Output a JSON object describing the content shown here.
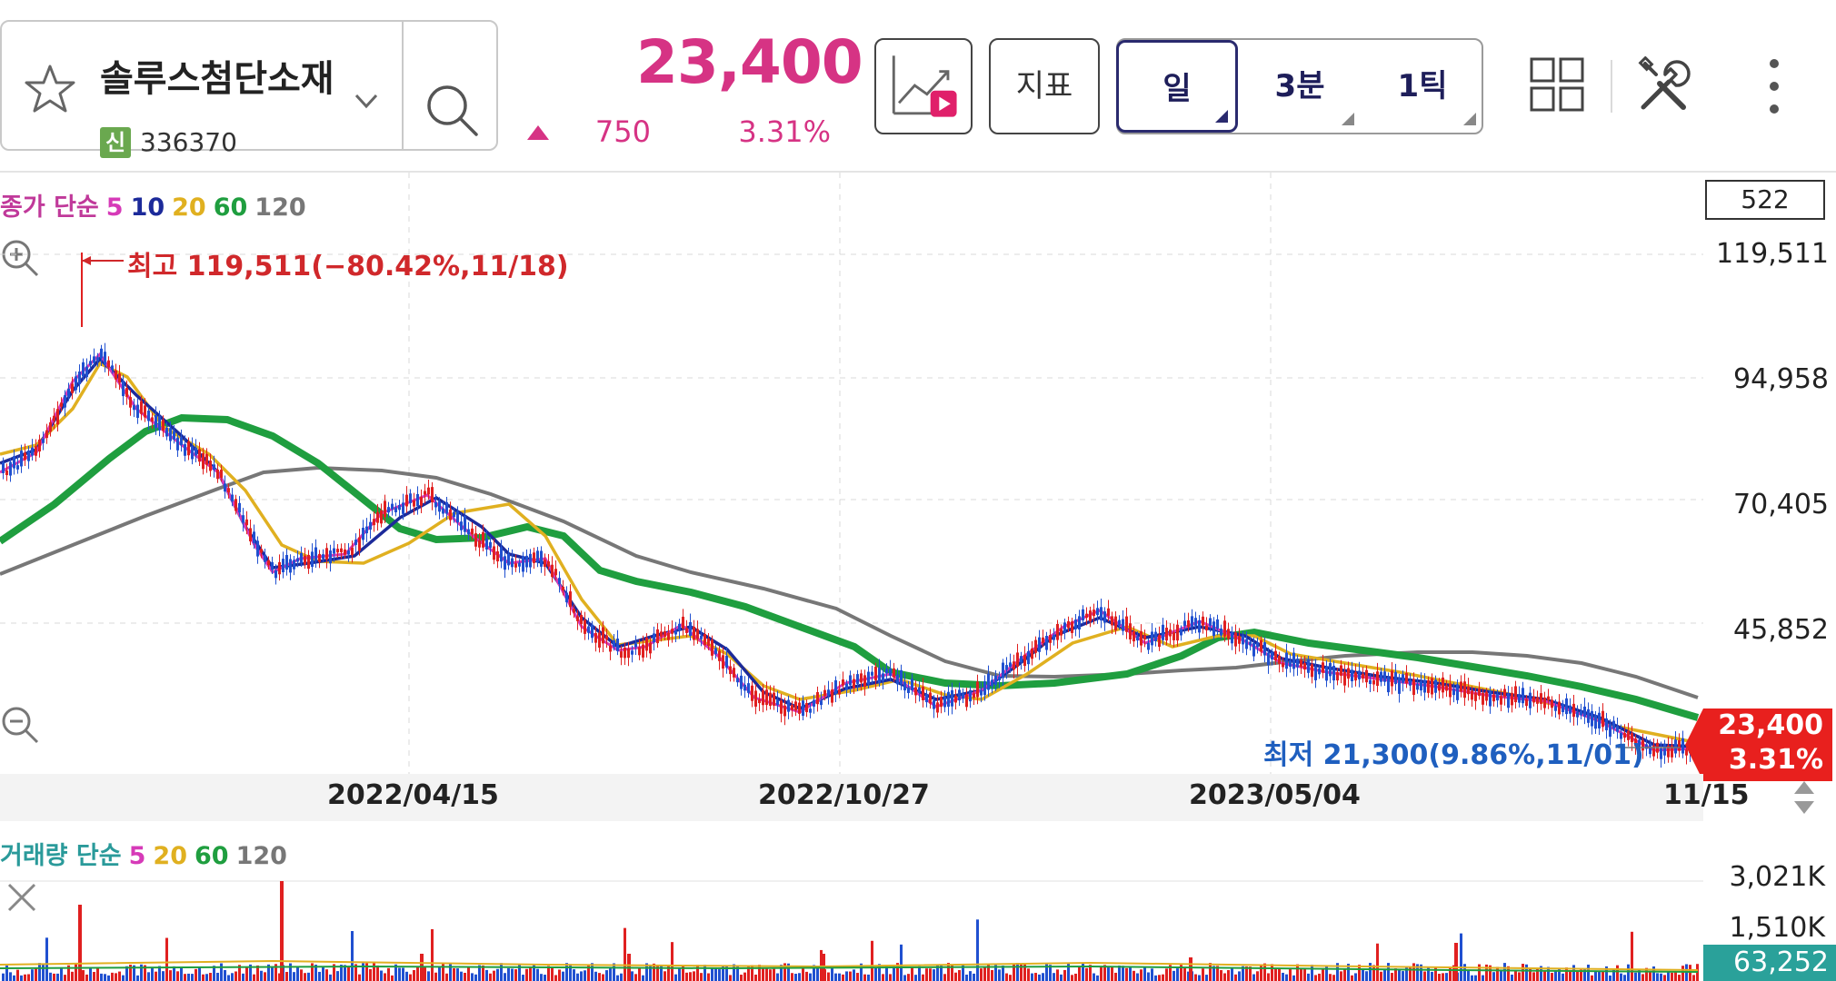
{
  "header": {
    "stock_name": "솔루스첨단소재",
    "stock_badge": "신",
    "stock_code": "336370",
    "price": "23,400",
    "change": "750",
    "change_pct": "3.31%",
    "indicator_label": "지표",
    "periods": [
      "일",
      "3분",
      "1틱"
    ],
    "active_period": "일"
  },
  "chart": {
    "legend_label": "종가 단순",
    "ma_periods": [
      "5",
      "10",
      "20",
      "60",
      "120"
    ],
    "count_box": "522",
    "y_axis_labels": [
      "119,511",
      "94,958",
      "70,405",
      "45,852"
    ],
    "max_label": "최고 119,511(−80.42%,11/18)",
    "min_label": "최저 21,300(9.86%,11/01)",
    "current_price": "23,400",
    "current_pct": "3.31%",
    "x_axis_labels": [
      "2022/04/15",
      "2022/10/27",
      "2023/05/04",
      "11/15"
    ],
    "volume_legend_label": "거래량 단순",
    "volume_ma_periods": [
      "5",
      "20",
      "60",
      "120"
    ],
    "volume_y_labels": [
      "3,021K",
      "1,510K"
    ],
    "current_volume": "63,252"
  },
  "colors": {
    "up": "#d63384",
    "ma5": "#d63ab8",
    "ma10": "#1c2a9a",
    "ma20": "#e0b020",
    "ma60": "#1f9e3f",
    "ma120": "#777777",
    "candle_up": "#e02020",
    "candle_down": "#2050d0"
  },
  "icons": {
    "favorite": "star-icon",
    "search": "search-icon",
    "chart_play": "chart-play-icon",
    "layout": "grid-layout-icon",
    "tools": "tools-icon",
    "more": "more-vertical-icon",
    "zoom_in": "zoom-in-icon",
    "zoom_out": "zoom-out-icon",
    "close": "close-icon"
  }
}
